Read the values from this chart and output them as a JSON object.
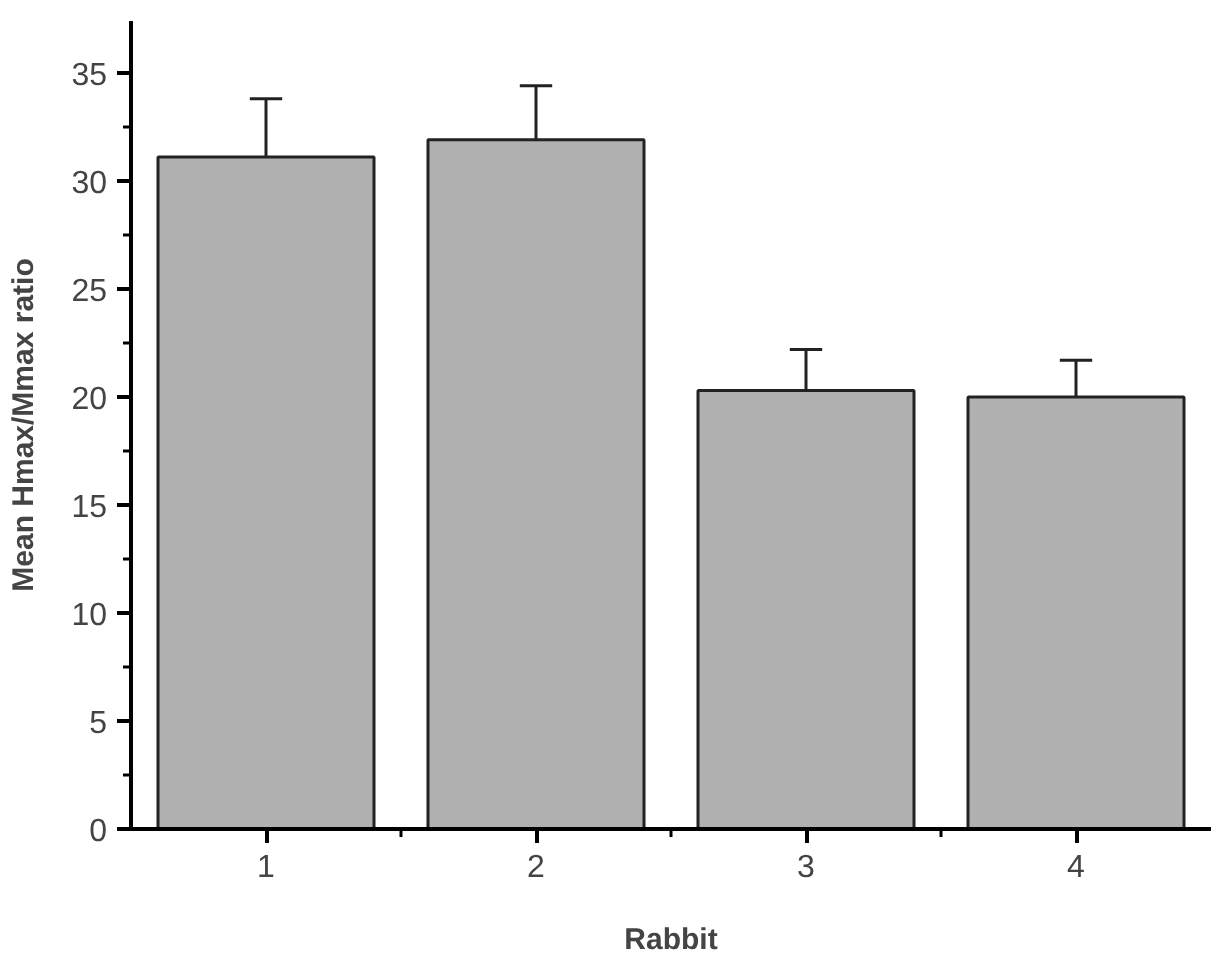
{
  "chart_data": {
    "type": "bar",
    "xlabel": "Rabbit",
    "ylabel": "Mean Hmax/Mmax ratio",
    "categories": [
      "1",
      "2",
      "3",
      "4"
    ],
    "values": [
      31.1,
      31.9,
      20.3,
      20.0
    ],
    "errors": [
      2.7,
      2.5,
      1.9,
      1.7
    ],
    "color": "#b0b0b0",
    "ylim": [
      0,
      37.4
    ],
    "yticks": [
      0,
      5,
      10,
      15,
      20,
      25,
      30,
      35
    ],
    "grid": false
  }
}
